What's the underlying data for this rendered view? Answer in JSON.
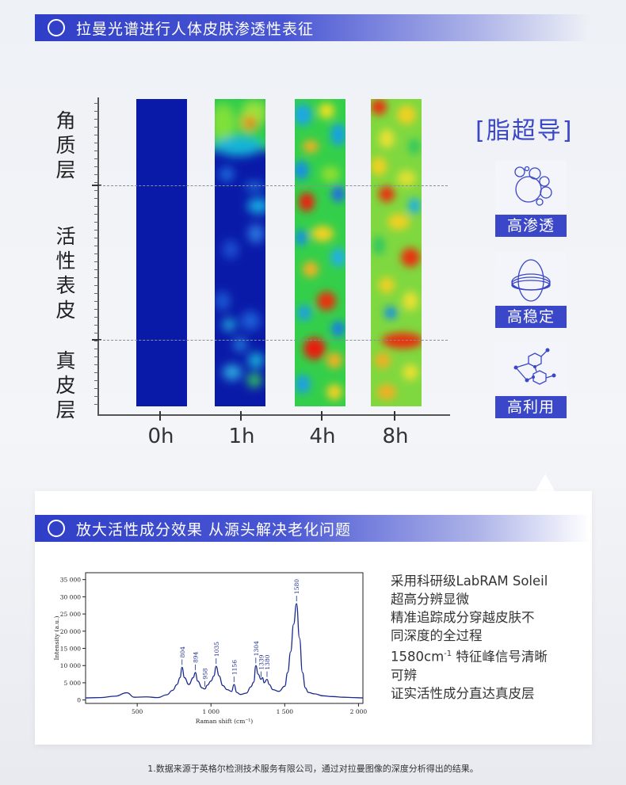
{
  "section1": {
    "title": "拉曼光谱进行人体皮肤渗透性表征"
  },
  "layers": [
    {
      "label": "角质层",
      "chars": [
        "角",
        "质",
        "层"
      ]
    },
    {
      "label": "活性表皮",
      "chars": [
        "活",
        "性",
        "表",
        "皮"
      ]
    },
    {
      "label": "真皮层",
      "chars": [
        "真",
        "皮",
        "层"
      ]
    }
  ],
  "time_points": [
    "0h",
    "1h",
    "4h",
    "8h"
  ],
  "heatmap_colors": {
    "low": "#0a1aa8",
    "mid": "#29d04a",
    "high": "#e81e0e"
  },
  "brand": {
    "title": "[脂超导]",
    "accent": "#3a47c8"
  },
  "features": [
    {
      "label": "高渗透",
      "icon": "bubbles-icon"
    },
    {
      "label": "高稳定",
      "icon": "rings-icon"
    },
    {
      "label": "高利用",
      "icon": "molecule-icon"
    }
  ],
  "section2": {
    "title": "放大活性成分效果 从源头解决老化问题"
  },
  "chart_data": {
    "type": "line",
    "title": "",
    "xlabel": "Raman shift (cm⁻¹)",
    "ylabel": "Intensity (a.u.)",
    "xlim": [
      150,
      2030
    ],
    "ylim": [
      -1000,
      37000
    ],
    "x_ticks": [
      500,
      1000,
      1500,
      2000
    ],
    "x_tick_labels": [
      "500",
      "1 000",
      "1 500",
      "2 000"
    ],
    "y_ticks": [
      0,
      5000,
      10000,
      15000,
      20000,
      25000,
      30000,
      35000
    ],
    "y_tick_labels": [
      "0",
      "5 000",
      "10 000",
      "15 000",
      "20 000",
      "25 000",
      "30 000",
      "35 000"
    ],
    "series": [
      {
        "x": [
          150,
          250,
          350,
          430,
          480,
          560,
          640,
          700,
          740,
          770,
          790,
          804,
          820,
          850,
          880,
          894,
          910,
          940,
          958,
          975,
          1000,
          1020,
          1035,
          1055,
          1080,
          1110,
          1140,
          1156,
          1175,
          1200,
          1240,
          1270,
          1290,
          1304,
          1320,
          1339,
          1350,
          1360,
          1380,
          1395,
          1420,
          1460,
          1500,
          1520,
          1540,
          1560,
          1580,
          1600,
          1620,
          1640,
          1660,
          1700,
          1760,
          1820,
          1900,
          1960,
          2030
        ],
        "y": [
          600,
          700,
          1100,
          2100,
          800,
          900,
          700,
          1500,
          2800,
          4500,
          6500,
          9500,
          6500,
          4500,
          6500,
          8000,
          5500,
          3500,
          3200,
          4300,
          5500,
          7000,
          9800,
          7000,
          4200,
          3000,
          2500,
          4500,
          2200,
          1600,
          2000,
          3800,
          5200,
          10000,
          7500,
          6000,
          6500,
          5000,
          6000,
          4500,
          3000,
          2500,
          4000,
          8000,
          14000,
          22000,
          28000,
          18000,
          8000,
          3500,
          2200,
          1800,
          1200,
          1000,
          800,
          700,
          600
        ]
      }
    ],
    "peaks": [
      {
        "x": 804,
        "y": 9500,
        "label": "804"
      },
      {
        "x": 894,
        "y": 8000,
        "label": "894"
      },
      {
        "x": 958,
        "y": 3200,
        "label": "958"
      },
      {
        "x": 1035,
        "y": 9800,
        "label": "1035"
      },
      {
        "x": 1156,
        "y": 4500,
        "label": "1156"
      },
      {
        "x": 1304,
        "y": 10000,
        "label": "1304"
      },
      {
        "x": 1339,
        "y": 6000,
        "label": "1339"
      },
      {
        "x": 1380,
        "y": 6000,
        "label": "1380"
      },
      {
        "x": 1580,
        "y": 28000,
        "label": "1580"
      }
    ],
    "line_color": "#1a2a8c",
    "grid": false
  },
  "description": {
    "lines": [
      "采用科研级LabRAM Soleil",
      "超高分辨显微",
      "精准追踪成分穿越皮肤不",
      "同深度的全过程"
    ],
    "peak_prefix": "1580cm",
    "peak_sup": "-1",
    "peak_suffix": "特征峰信号清晰",
    "lines2": [
      "可辨",
      "证实活性成分直达真皮层"
    ]
  },
  "footnote": "1.数据来源于英格尔检测技术服务有限公司，通过对拉曼图像的深度分析得出的结果。"
}
